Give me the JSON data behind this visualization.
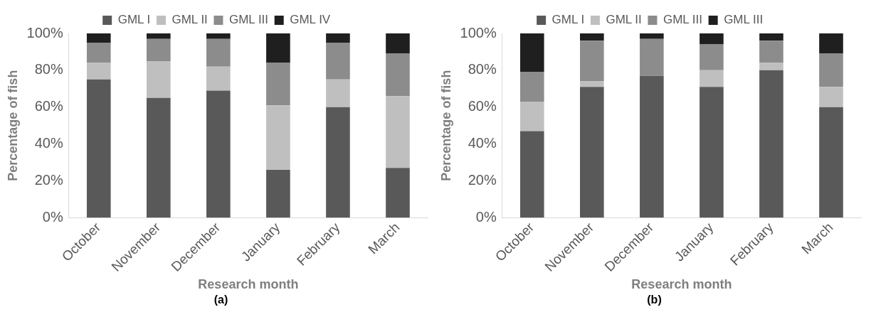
{
  "chart_data": [
    {
      "type": "bar",
      "stacked": true,
      "categories": [
        "October",
        "November",
        "December",
        "January",
        "February",
        "March"
      ],
      "xlabel": "Research month",
      "ylabel": "Percentage of fish",
      "ylim": [
        0,
        100
      ],
      "yticks": [
        {
          "value": 0,
          "label": "0%"
        },
        {
          "value": 20,
          "label": "20%"
        },
        {
          "value": 40,
          "label": "40%"
        },
        {
          "value": 60,
          "label": "60%"
        },
        {
          "value": 80,
          "label": "80%"
        },
        {
          "value": 100,
          "label": "100%"
        }
      ],
      "grid": false,
      "legend": "top",
      "annotations": [
        "(a)"
      ],
      "series": [
        {
          "name": "GML I",
          "color": "#595959",
          "values": [
            75,
            65,
            69,
            26,
            60,
            27
          ]
        },
        {
          "name": "GML II",
          "color": "#bfbfbf",
          "values": [
            9,
            20,
            13,
            35,
            15,
            39
          ]
        },
        {
          "name": "GML III",
          "color": "#8c8c8c",
          "values": [
            11,
            12,
            15,
            23,
            20,
            23
          ]
        },
        {
          "name": "GML IV",
          "color": "#1f1f1f",
          "values": [
            5,
            3,
            3,
            16,
            5,
            11
          ]
        }
      ]
    },
    {
      "type": "bar",
      "stacked": true,
      "categories": [
        "October",
        "November",
        "December",
        "January",
        "February",
        "March"
      ],
      "xlabel": "Research month",
      "ylabel": "Percentage of fish",
      "ylim": [
        0,
        100
      ],
      "yticks": [
        {
          "value": 0,
          "label": "0%"
        },
        {
          "value": 20,
          "label": "20%"
        },
        {
          "value": 40,
          "label": "40%"
        },
        {
          "value": 60,
          "label": "60%"
        },
        {
          "value": 80,
          "label": "80%"
        },
        {
          "value": 100,
          "label": "100%"
        }
      ],
      "grid": false,
      "legend": "top",
      "annotations": [
        "(b)"
      ],
      "series": [
        {
          "name": "GML I",
          "color": "#595959",
          "values": [
            47,
            71,
            77,
            71,
            80,
            60
          ]
        },
        {
          "name": "GML II",
          "color": "#bfbfbf",
          "values": [
            16,
            3,
            0,
            9,
            4,
            11
          ]
        },
        {
          "name": "GML III",
          "color": "#8c8c8c",
          "values": [
            16,
            22,
            20,
            14,
            12,
            18
          ]
        },
        {
          "name": "GML III",
          "color": "#1f1f1f",
          "values": [
            21,
            4,
            3,
            6,
            4,
            11
          ]
        }
      ]
    }
  ]
}
